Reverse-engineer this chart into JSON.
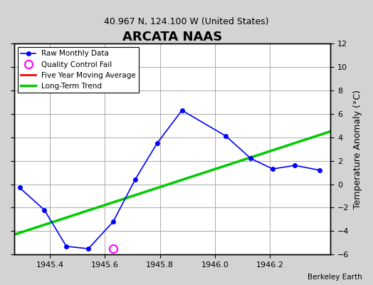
{
  "title": "ARCATA NAAS",
  "subtitle": "40.967 N, 124.100 W (United States)",
  "ylabel": "Temperature Anomaly (°C)",
  "credit": "Berkeley Earth",
  "xlim": [
    1945.27,
    1946.42
  ],
  "ylim": [
    -6,
    12
  ],
  "yticks": [
    -6,
    -4,
    -2,
    0,
    2,
    4,
    6,
    8,
    10,
    12
  ],
  "xticks": [
    1945.4,
    1945.6,
    1945.8,
    1946.0,
    1946.2
  ],
  "raw_x": [
    1945.29,
    1945.38,
    1945.46,
    1945.54,
    1945.63,
    1945.71,
    1945.79,
    1945.88,
    1946.04,
    1946.13,
    1946.21,
    1946.29,
    1946.38
  ],
  "raw_y": [
    -0.3,
    -2.2,
    -5.3,
    -5.5,
    -3.2,
    0.4,
    3.5,
    6.3,
    4.1,
    2.2,
    1.3,
    1.6,
    1.2
  ],
  "qc_fail_x": [
    1945.63
  ],
  "qc_fail_y": [
    -5.5
  ],
  "trend_x": [
    1945.27,
    1946.42
  ],
  "trend_y": [
    -4.3,
    4.5
  ],
  "raw_color": "#0000ff",
  "raw_marker": "o",
  "raw_markersize": 4,
  "trend_color": "#00cc00",
  "trend_lw": 2.5,
  "ma_color": "#ff0000",
  "qc_color": "#ff00ff",
  "bg_color": "#d3d3d3",
  "plot_bg": "#ffffff",
  "grid_color": "#aaaaaa"
}
